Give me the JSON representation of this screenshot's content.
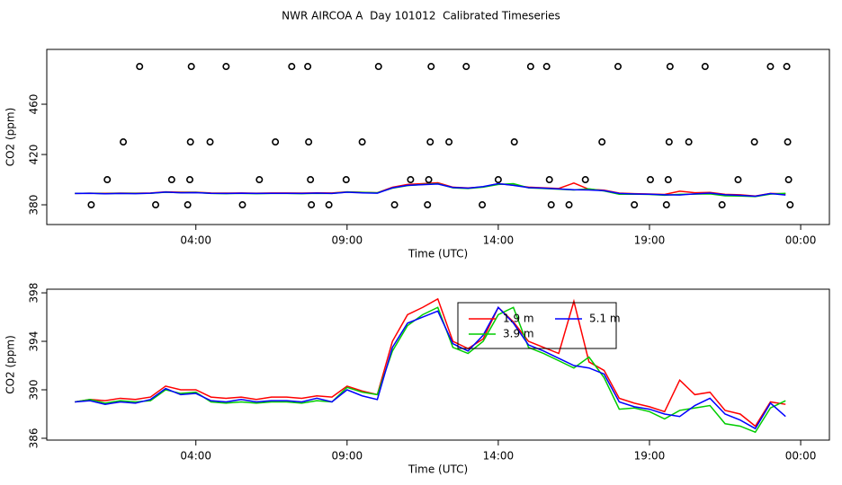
{
  "title": "NWR AIRCOA A  Day 101012  Calibrated Timeseries",
  "chart_data": [
    {
      "type": "line",
      "xlabel": "Time (UTC)",
      "ylabel": "CO2 (ppm)",
      "xlim": [
        -0.93,
        24.95
      ],
      "ylim": [
        364.3,
        503.6
      ],
      "xticks": [
        {
          "value": 4,
          "label": "04:00"
        },
        {
          "value": 9,
          "label": "09:00"
        },
        {
          "value": 14,
          "label": "14:00"
        },
        {
          "value": 19,
          "label": "19:00"
        },
        {
          "value": 24,
          "label": "00:00"
        }
      ],
      "yticks": [
        380,
        420,
        460
      ],
      "x": [
        0,
        0.5,
        1,
        1.5,
        2,
        2.5,
        3,
        3.5,
        4,
        4.5,
        5,
        5.5,
        6,
        6.5,
        7,
        7.5,
        8,
        8.5,
        9,
        9.5,
        10,
        10.5,
        11,
        11.5,
        12,
        12.5,
        13,
        13.5,
        14,
        14.5,
        15,
        15.5,
        16,
        16.5,
        17,
        17.5,
        18,
        18.5,
        19,
        19.5,
        20,
        20.5,
        21,
        21.5,
        22,
        22.5,
        23,
        23.5
      ],
      "series": [
        {
          "name": "1.9 m",
          "color": "#ff0000",
          "values": [
            389.0,
            389.2,
            389.1,
            389.3,
            389.2,
            389.4,
            390.3,
            390.0,
            390.0,
            389.4,
            389.3,
            389.4,
            389.2,
            389.4,
            389.4,
            389.3,
            389.5,
            389.4,
            390.3,
            389.9,
            389.6,
            394.0,
            396.2,
            396.8,
            397.5,
            394.0,
            393.4,
            394.2,
            396.8,
            395.6,
            394.0,
            393.5,
            393.0,
            397.3,
            392.3,
            391.6,
            389.3,
            388.9,
            388.6,
            388.2,
            390.8,
            389.6,
            389.8,
            388.3,
            388.0,
            387.0,
            389.0,
            388.8
          ]
        },
        {
          "name": "3.9 m",
          "color": "#00cc00",
          "values": [
            389.0,
            389.2,
            388.9,
            389.1,
            389.0,
            389.1,
            390.0,
            389.7,
            389.8,
            389.0,
            388.9,
            389.0,
            388.9,
            389.0,
            389.0,
            388.9,
            389.1,
            389.0,
            390.2,
            389.8,
            389.6,
            393.2,
            395.3,
            396.2,
            396.8,
            393.5,
            393.0,
            394.0,
            396.2,
            396.8,
            393.5,
            393.0,
            392.4,
            391.8,
            392.7,
            391.0,
            388.4,
            388.5,
            388.2,
            387.6,
            388.3,
            388.5,
            388.7,
            387.2,
            387.0,
            386.5,
            388.5,
            389.1
          ]
        },
        {
          "name": "5.1 m",
          "color": "#0000ff",
          "values": [
            389.0,
            389.1,
            388.8,
            389.0,
            388.9,
            389.2,
            390.1,
            389.6,
            389.7,
            389.1,
            389.0,
            389.2,
            389.0,
            389.1,
            389.1,
            389.0,
            389.3,
            389.0,
            390.0,
            389.5,
            389.2,
            393.5,
            395.5,
            396.0,
            396.5,
            393.8,
            393.2,
            394.5,
            396.8,
            395.5,
            393.7,
            393.2,
            392.6,
            392.0,
            391.8,
            391.3,
            389.0,
            388.6,
            388.4,
            388.0,
            387.8,
            388.7,
            389.3,
            388.0,
            387.5,
            386.8,
            388.9,
            387.8
          ]
        }
      ],
      "scatter": {
        "color": "#000000",
        "x": [
          0.54,
          1.07,
          1.6,
          2.14,
          2.67,
          3.2,
          3.73,
          3.8,
          3.82,
          3.85,
          4.47,
          5.0,
          5.54,
          6.1,
          6.63,
          7.17,
          7.7,
          7.73,
          7.79,
          7.82,
          8.4,
          8.97,
          9.5,
          10.04,
          10.57,
          11.1,
          11.66,
          11.7,
          11.75,
          11.78,
          12.37,
          12.94,
          13.47,
          14.0,
          14.53,
          15.07,
          15.6,
          15.69,
          15.75,
          16.34,
          16.88,
          17.43,
          17.96,
          18.5,
          19.03,
          19.56,
          19.62,
          19.65,
          19.68,
          20.3,
          20.84,
          21.4,
          21.93,
          22.47,
          23.0,
          23.54,
          23.57,
          23.6,
          23.65
        ],
        "y": [
          380,
          400,
          430,
          490,
          380,
          400,
          380,
          400,
          430,
          490,
          430,
          490,
          380,
          400,
          430,
          490,
          490,
          430,
          400,
          380,
          380,
          400,
          430,
          490,
          380,
          400,
          380,
          400,
          430,
          490,
          430,
          490,
          380,
          400,
          430,
          490,
          490,
          400,
          380,
          380,
          400,
          430,
          490,
          380,
          400,
          380,
          400,
          430,
          490,
          430,
          490,
          380,
          400,
          430,
          490,
          490,
          430,
          400,
          380
        ]
      }
    },
    {
      "type": "line",
      "xlabel": "Time (UTC)",
      "ylabel": "CO2 (ppm)",
      "legend": true,
      "xlim": [
        -0.93,
        24.95
      ],
      "ylim": [
        385.85,
        398.3
      ],
      "xticks": [
        {
          "value": 4,
          "label": "04:00"
        },
        {
          "value": 9,
          "label": "09:00"
        },
        {
          "value": 14,
          "label": "14:00"
        },
        {
          "value": 19,
          "label": "19:00"
        },
        {
          "value": 24,
          "label": "00:00"
        }
      ],
      "yticks": [
        386,
        390,
        394,
        398
      ],
      "x": [
        0,
        0.5,
        1,
        1.5,
        2,
        2.5,
        3,
        3.5,
        4,
        4.5,
        5,
        5.5,
        6,
        6.5,
        7,
        7.5,
        8,
        8.5,
        9,
        9.5,
        10,
        10.5,
        11,
        11.5,
        12,
        12.5,
        13,
        13.5,
        14,
        14.5,
        15,
        15.5,
        16,
        16.5,
        17,
        17.5,
        18,
        18.5,
        19,
        19.5,
        20,
        20.5,
        21,
        21.5,
        22,
        22.5,
        23,
        23.5
      ],
      "series": [
        {
          "name": "1.9 m",
          "color": "#ff0000",
          "values": [
            389.0,
            389.2,
            389.1,
            389.3,
            389.2,
            389.4,
            390.3,
            390.0,
            390.0,
            389.4,
            389.3,
            389.4,
            389.2,
            389.4,
            389.4,
            389.3,
            389.5,
            389.4,
            390.3,
            389.9,
            389.6,
            394.0,
            396.2,
            396.8,
            397.5,
            394.0,
            393.4,
            394.2,
            396.8,
            395.6,
            394.0,
            393.5,
            393.0,
            397.3,
            392.3,
            391.6,
            389.3,
            388.9,
            388.6,
            388.2,
            390.8,
            389.6,
            389.8,
            388.3,
            388.0,
            387.0,
            389.0,
            388.8
          ]
        },
        {
          "name": "3.9 m",
          "color": "#00cc00",
          "values": [
            389.0,
            389.2,
            388.9,
            389.1,
            389.0,
            389.1,
            390.0,
            389.7,
            389.8,
            389.0,
            388.9,
            389.0,
            388.9,
            389.0,
            389.0,
            388.9,
            389.1,
            389.0,
            390.2,
            389.8,
            389.6,
            393.2,
            395.3,
            396.2,
            396.8,
            393.5,
            393.0,
            394.0,
            396.2,
            396.8,
            393.5,
            393.0,
            392.4,
            391.8,
            392.7,
            391.0,
            388.4,
            388.5,
            388.2,
            387.6,
            388.3,
            388.5,
            388.7,
            387.2,
            387.0,
            386.5,
            388.5,
            389.1
          ]
        },
        {
          "name": "5.1 m",
          "color": "#0000ff",
          "values": [
            389.0,
            389.1,
            388.8,
            389.0,
            388.9,
            389.2,
            390.1,
            389.6,
            389.7,
            389.1,
            389.0,
            389.2,
            389.0,
            389.1,
            389.1,
            389.0,
            389.3,
            389.0,
            390.0,
            389.5,
            389.2,
            393.5,
            395.5,
            396.0,
            396.5,
            393.8,
            393.2,
            394.5,
            396.8,
            395.5,
            393.7,
            393.2,
            392.6,
            392.0,
            391.8,
            391.3,
            389.0,
            388.6,
            388.4,
            388.0,
            387.8,
            388.7,
            389.3,
            388.0,
            387.5,
            386.8,
            388.9,
            387.8
          ]
        }
      ]
    }
  ]
}
